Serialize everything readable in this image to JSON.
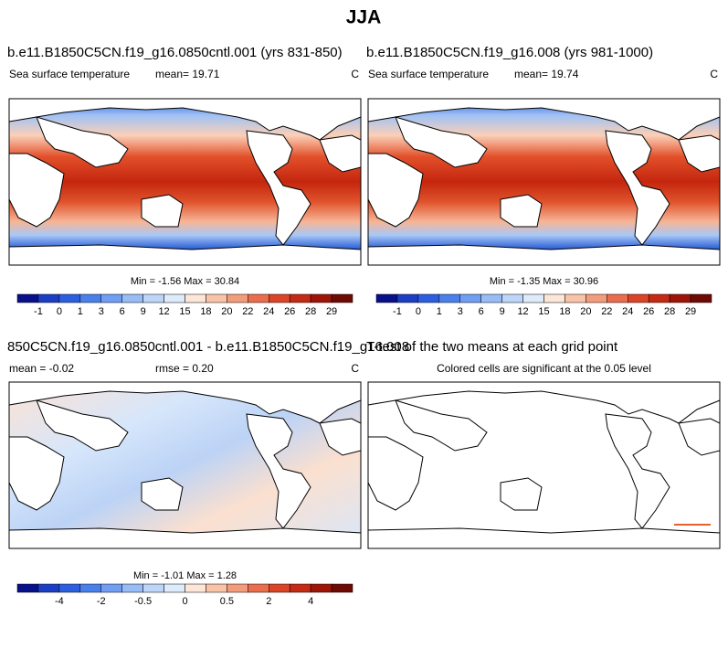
{
  "title": "JJA",
  "panels": [
    {
      "title": "b.e11.B1850C5CN.f19_g16.0850cntl.001 (yrs 831-850)",
      "left": "Sea surface temperature",
      "center": "mean= 19.71",
      "right": "C",
      "stats": "Min = -1.56 Max = 30.84",
      "colorbar": [
        "-1",
        "0",
        "1",
        "3",
        "6",
        "9",
        "12",
        "15",
        "18",
        "20",
        "22",
        "24",
        "26",
        "28",
        "29"
      ]
    },
    {
      "title": "b.e11.B1850C5CN.f19_g16.008 (yrs 981-1000)",
      "left": "Sea surface temperature",
      "center": "mean= 19.74",
      "right": "C",
      "stats": "Min = -1.35 Max = 30.96",
      "colorbar": [
        "-1",
        "0",
        "1",
        "3",
        "6",
        "9",
        "12",
        "15",
        "18",
        "20",
        "22",
        "24",
        "26",
        "28",
        "29"
      ]
    },
    {
      "title": "850C5CN.f19_g16.0850cntl.001 - b.e11.B1850C5CN.f19_g16.008",
      "left": "mean = -0.02",
      "center": "rmse =  0.20",
      "right": "C",
      "stats": "Min = -1.01 Max =  1.28",
      "colorbar": [
        "-4",
        "-2",
        "-0.5",
        "0",
        "0.5",
        "2",
        "4"
      ]
    },
    {
      "title": "T-test of the two means at each grid point",
      "subtitle": "Colored cells are significant at the 0.05 level"
    }
  ]
}
